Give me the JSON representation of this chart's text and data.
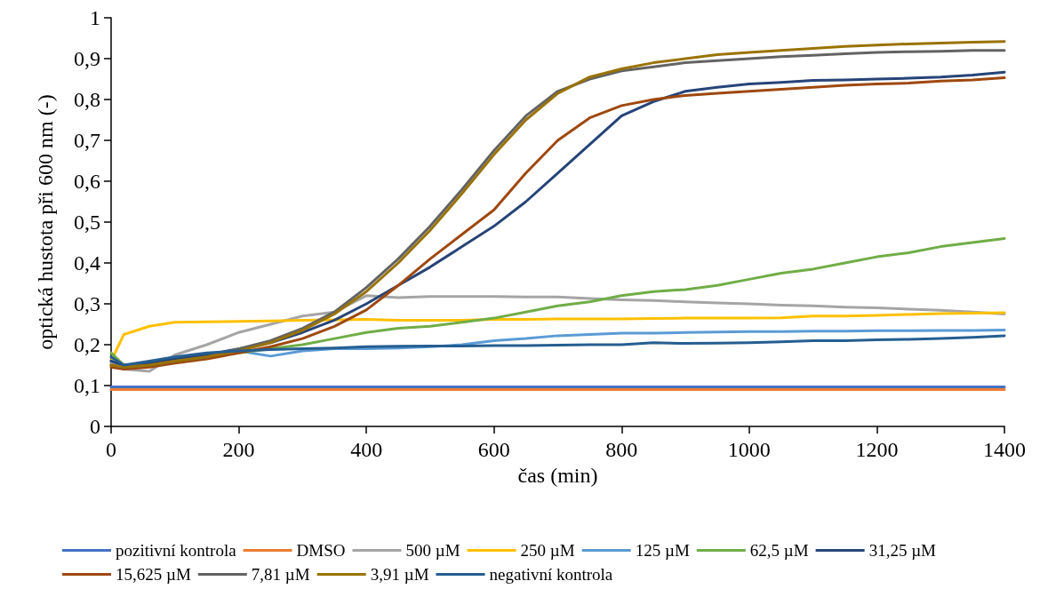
{
  "chart_data": {
    "type": "line",
    "xlabel": "čas (min)",
    "ylabel": "optická hustota při 600 nm (-)",
    "x": [
      0,
      20,
      60,
      100,
      150,
      200,
      250,
      300,
      350,
      400,
      450,
      500,
      550,
      600,
      650,
      700,
      750,
      800,
      850,
      900,
      950,
      1000,
      1050,
      1100,
      1150,
      1200,
      1250,
      1300,
      1350,
      1400
    ],
    "xlim": [
      0,
      1400
    ],
    "xticks": [
      0,
      200,
      400,
      600,
      800,
      1000,
      1200,
      1400
    ],
    "ylim": [
      0,
      1
    ],
    "yticks": [
      0,
      {
        "value": 0.1,
        "label": "0,1"
      },
      {
        "value": 0.2,
        "label": "0,2"
      },
      {
        "value": 0.3,
        "label": "0,3"
      },
      {
        "value": 0.4,
        "label": "0,4"
      },
      {
        "value": 0.5,
        "label": "0,5"
      },
      {
        "value": 0.6,
        "label": "0,6"
      },
      {
        "value": 0.7,
        "label": "0,7"
      },
      {
        "value": 0.8,
        "label": "0,8"
      },
      {
        "value": 0.9,
        "label": "0,9"
      },
      1
    ],
    "grid": false,
    "legend": "bottom",
    "marker": "none",
    "line_style": "solid",
    "series": [
      {
        "name": "pozitivní kontrola",
        "color": "#4472c4",
        "values": [
          0.097,
          0.097,
          0.097,
          0.097,
          0.097,
          0.097,
          0.097,
          0.097,
          0.097,
          0.097,
          0.097,
          0.097,
          0.097,
          0.097,
          0.097,
          0.097,
          0.097,
          0.097,
          0.097,
          0.097,
          0.097,
          0.097,
          0.097,
          0.097,
          0.097,
          0.097,
          0.097,
          0.097,
          0.097,
          0.097
        ]
      },
      {
        "name": "DMSO",
        "color": "#ed7d31",
        "values": [
          0.09,
          0.09,
          0.09,
          0.09,
          0.09,
          0.09,
          0.09,
          0.09,
          0.09,
          0.09,
          0.09,
          0.09,
          0.09,
          0.09,
          0.09,
          0.09,
          0.09,
          0.09,
          0.09,
          0.09,
          0.09,
          0.09,
          0.09,
          0.09,
          0.09,
          0.09,
          0.09,
          0.09,
          0.09,
          0.09
        ]
      },
      {
        "name": "500 µM",
        "color": "#a5a5a5",
        "values": [
          0.155,
          0.14,
          0.135,
          0.175,
          0.2,
          0.23,
          0.25,
          0.27,
          0.28,
          0.32,
          0.315,
          0.318,
          0.318,
          0.318,
          0.317,
          0.317,
          0.313,
          0.31,
          0.308,
          0.305,
          0.302,
          0.3,
          0.297,
          0.295,
          0.292,
          0.29,
          0.287,
          0.284,
          0.28,
          0.275
        ]
      },
      {
        "name": "250 µM",
        "color": "#ffc000",
        "values": [
          0.16,
          0.225,
          0.245,
          0.255,
          0.256,
          0.257,
          0.258,
          0.26,
          0.261,
          0.262,
          0.26,
          0.26,
          0.26,
          0.262,
          0.262,
          0.263,
          0.263,
          0.263,
          0.264,
          0.265,
          0.265,
          0.265,
          0.266,
          0.27,
          0.27,
          0.272,
          0.274,
          0.276,
          0.277,
          0.278
        ]
      },
      {
        "name": "125 µM",
        "color": "#5b9bd5",
        "values": [
          0.16,
          0.15,
          0.155,
          0.165,
          0.175,
          0.185,
          0.172,
          0.185,
          0.19,
          0.19,
          0.192,
          0.195,
          0.2,
          0.21,
          0.215,
          0.222,
          0.225,
          0.228,
          0.228,
          0.23,
          0.231,
          0.232,
          0.232,
          0.233,
          0.233,
          0.234,
          0.234,
          0.235,
          0.235,
          0.236
        ]
      },
      {
        "name": "62,5 µM",
        "color": "#70ad47",
        "values": [
          0.18,
          0.15,
          0.15,
          0.16,
          0.17,
          0.18,
          0.19,
          0.2,
          0.215,
          0.23,
          0.24,
          0.245,
          0.255,
          0.265,
          0.28,
          0.295,
          0.305,
          0.32,
          0.33,
          0.335,
          0.345,
          0.36,
          0.375,
          0.385,
          0.4,
          0.415,
          0.425,
          0.44,
          0.45,
          0.46
        ]
      },
      {
        "name": "31,25 µM",
        "color": "#264478",
        "values": [
          0.16,
          0.15,
          0.155,
          0.165,
          0.175,
          0.19,
          0.205,
          0.23,
          0.26,
          0.3,
          0.345,
          0.39,
          0.44,
          0.49,
          0.55,
          0.62,
          0.69,
          0.76,
          0.795,
          0.82,
          0.83,
          0.838,
          0.842,
          0.847,
          0.848,
          0.85,
          0.852,
          0.855,
          0.86,
          0.867
        ]
      },
      {
        "name": "15,625 µM",
        "color": "#9e480e",
        "values": [
          0.145,
          0.14,
          0.145,
          0.155,
          0.165,
          0.18,
          0.195,
          0.215,
          0.245,
          0.285,
          0.345,
          0.41,
          0.47,
          0.53,
          0.62,
          0.7,
          0.755,
          0.785,
          0.8,
          0.81,
          0.815,
          0.82,
          0.825,
          0.83,
          0.835,
          0.838,
          0.84,
          0.845,
          0.848,
          0.853
        ]
      },
      {
        "name": "7,81 µM",
        "color": "#636363",
        "values": [
          0.15,
          0.145,
          0.15,
          0.16,
          0.17,
          0.19,
          0.21,
          0.24,
          0.28,
          0.34,
          0.41,
          0.49,
          0.58,
          0.675,
          0.76,
          0.82,
          0.85,
          0.87,
          0.88,
          0.89,
          0.895,
          0.9,
          0.905,
          0.908,
          0.912,
          0.915,
          0.917,
          0.918,
          0.92,
          0.92
        ]
      },
      {
        "name": "3,91 µM",
        "color": "#997300",
        "values": [
          0.15,
          0.145,
          0.15,
          0.16,
          0.17,
          0.185,
          0.205,
          0.235,
          0.275,
          0.33,
          0.4,
          0.48,
          0.57,
          0.665,
          0.75,
          0.815,
          0.855,
          0.875,
          0.89,
          0.9,
          0.91,
          0.915,
          0.92,
          0.925,
          0.93,
          0.933,
          0.936,
          0.938,
          0.94,
          0.942
        ]
      },
      {
        "name": "negativní kontrola",
        "color": "#255e91",
        "values": [
          0.17,
          0.15,
          0.16,
          0.17,
          0.18,
          0.185,
          0.188,
          0.19,
          0.192,
          0.195,
          0.196,
          0.197,
          0.197,
          0.198,
          0.198,
          0.199,
          0.2,
          0.2,
          0.205,
          0.203,
          0.204,
          0.205,
          0.207,
          0.21,
          0.21,
          0.212,
          0.213,
          0.215,
          0.218,
          0.222
        ]
      }
    ]
  }
}
